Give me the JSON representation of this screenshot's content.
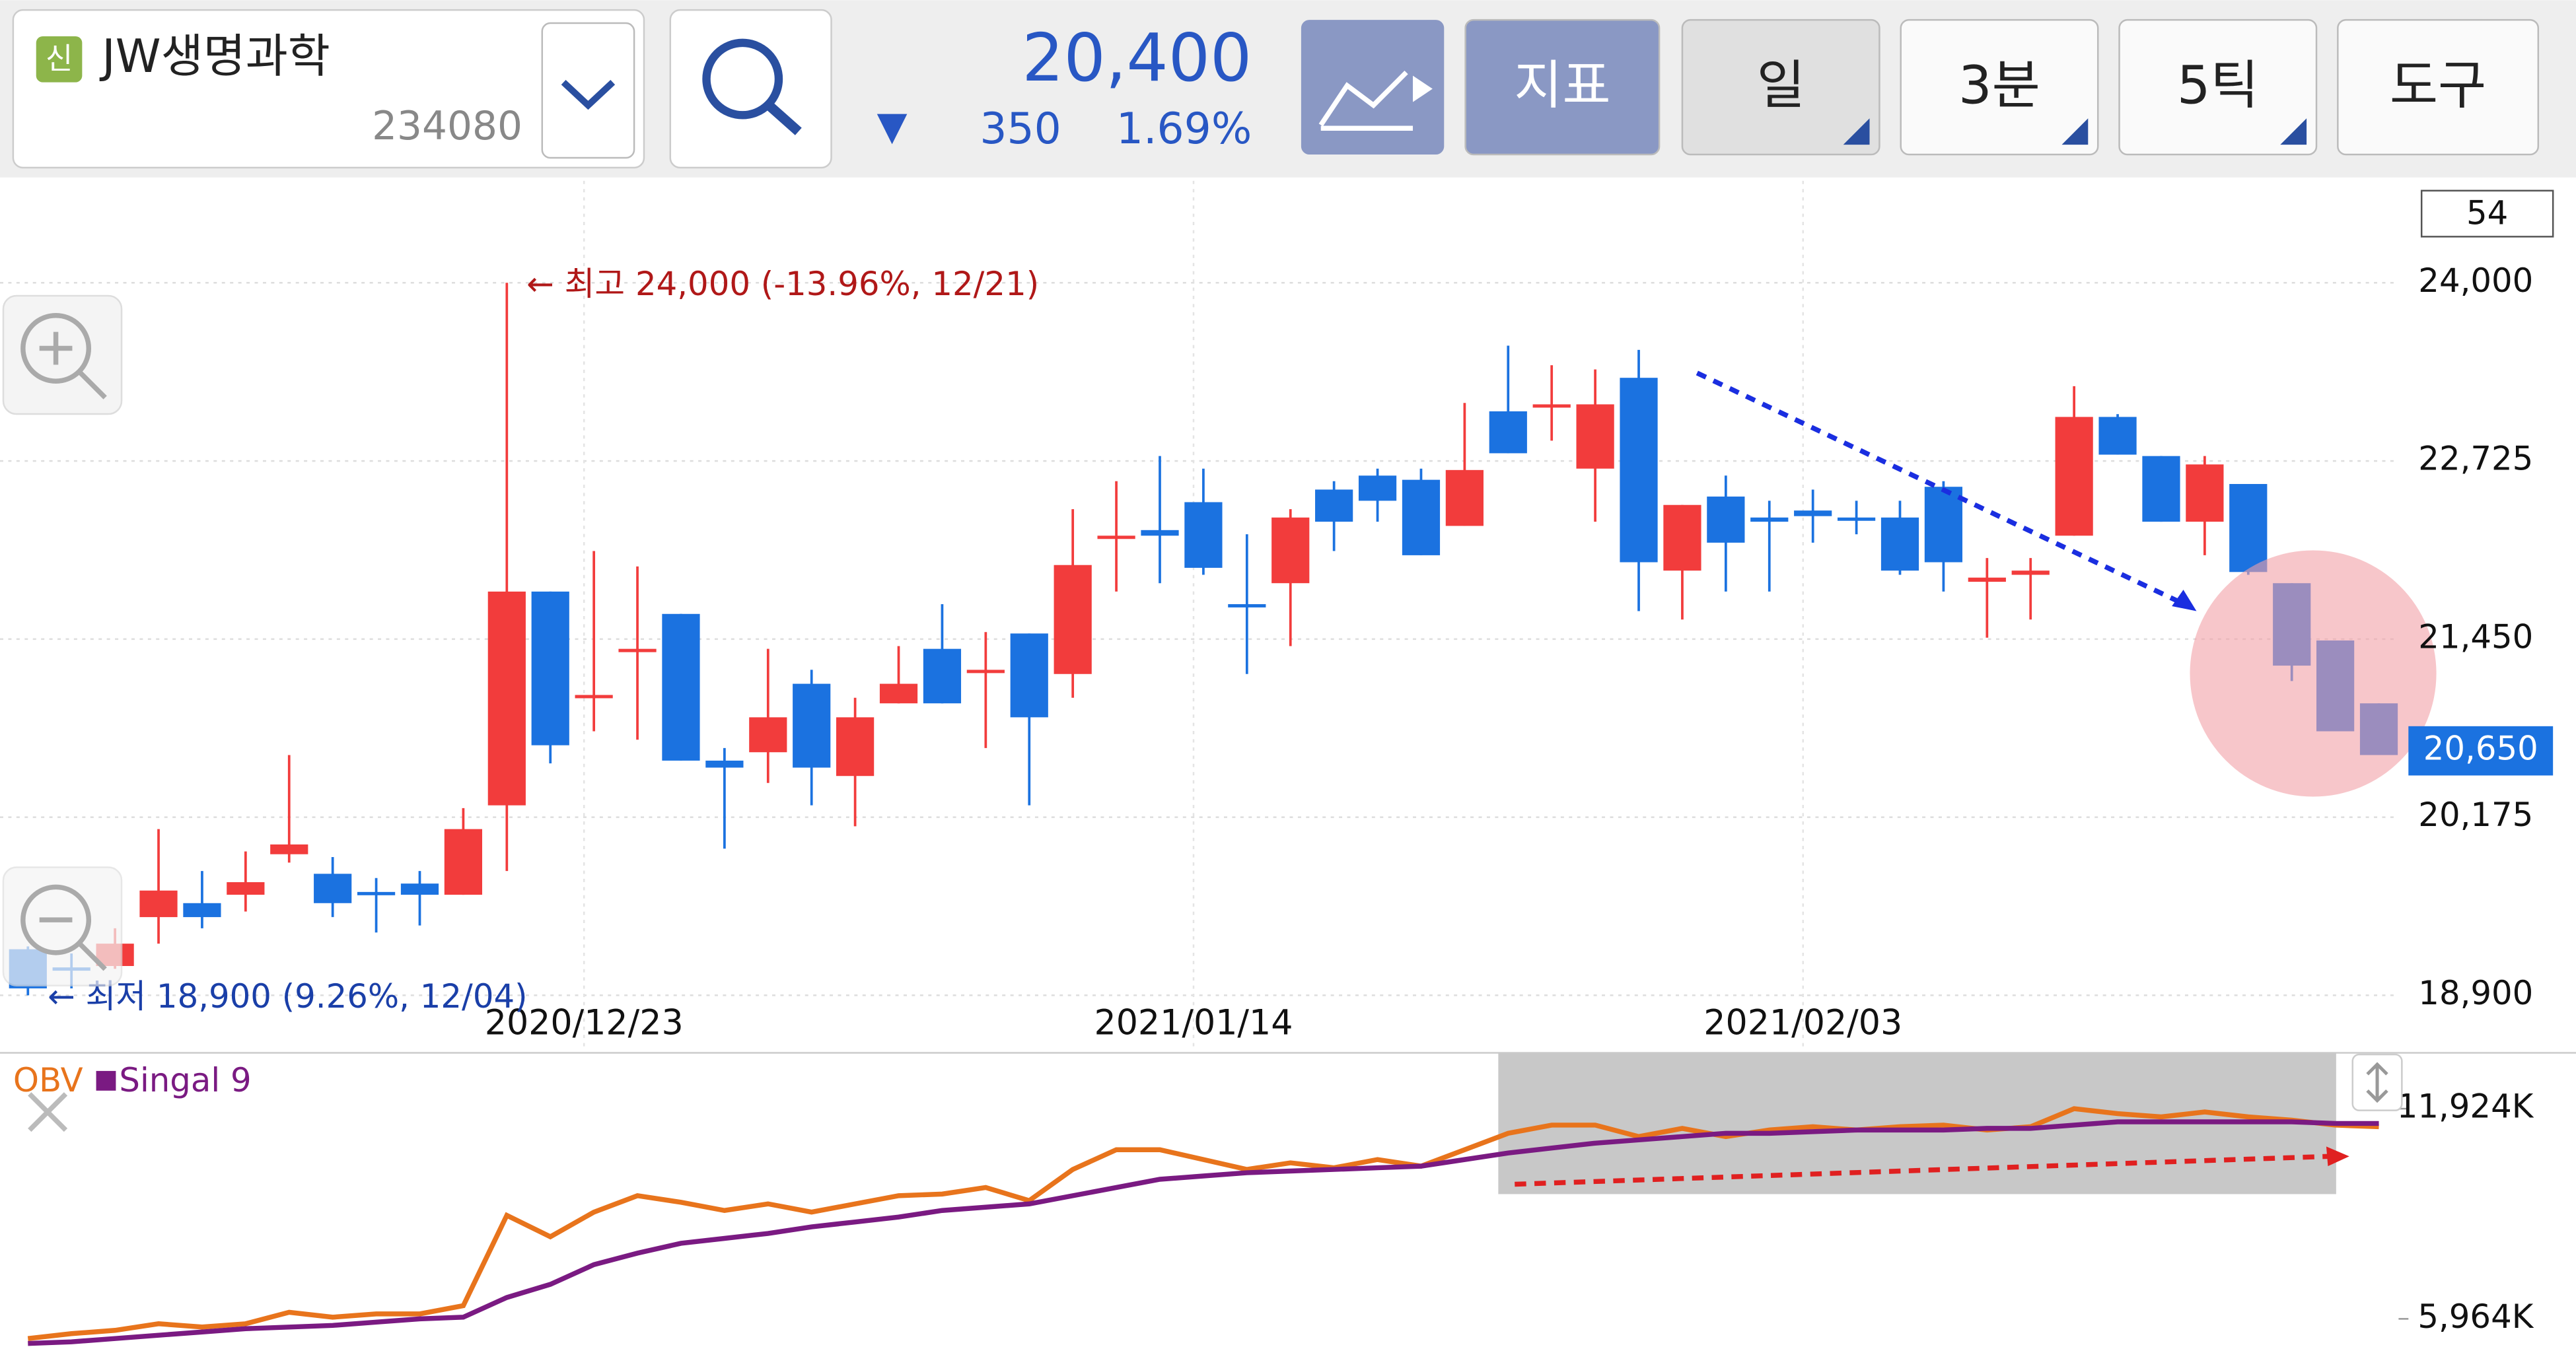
{
  "header": {
    "badge": "신",
    "stock_name": "JW생명과학",
    "stock_code": "234080",
    "price": "20,400",
    "change_arrow": "▼",
    "change": "350",
    "change_pct": "1.69%",
    "buttons": [
      "지표",
      "일",
      "3분",
      "5틱",
      "도구"
    ]
  },
  "chart_data": {
    "type": "candlestick",
    "up_color": "#f23c3c",
    "down_color": "#1b72e0",
    "categories": [
      null,
      null,
      null,
      null,
      null,
      null,
      null,
      null,
      null,
      null,
      null,
      null,
      null,
      "2020/12/23",
      null,
      null,
      null,
      null,
      null,
      null,
      null,
      null,
      null,
      null,
      null,
      null,
      null,
      "2021/01/14",
      null,
      null,
      null,
      null,
      null,
      null,
      null,
      null,
      null,
      null,
      null,
      null,
      null,
      "2021/02/03",
      null,
      null,
      null,
      null,
      null,
      null,
      null,
      null,
      null,
      null,
      null,
      null,
      null
    ],
    "open": [
      19230,
      19100,
      19110,
      19460,
      19560,
      19620,
      19910,
      19770,
      19640,
      19700,
      19620,
      20260,
      21790,
      21030,
      21360,
      21630,
      20580,
      20640,
      21130,
      20470,
      20990,
      21380,
      21210,
      21490,
      21200,
      22170,
      22230,
      22430,
      21700,
      21850,
      22520,
      22620,
      22590,
      22260,
      23080,
      23110,
      22670,
      23320,
      21940,
      22470,
      22320,
      22370,
      22320,
      22320,
      22540,
      21860,
      21910,
      22190,
      23040,
      22760,
      22290,
      22560,
      21850,
      21440,
      20990
    ],
    "high": [
      19250,
      19200,
      19380,
      20090,
      19790,
      19930,
      20620,
      19890,
      19740,
      19790,
      20240,
      24000,
      21790,
      22080,
      21970,
      21630,
      20670,
      21380,
      21230,
      21030,
      21400,
      21700,
      21500,
      21490,
      22380,
      22580,
      22760,
      22670,
      22200,
      22380,
      22580,
      22670,
      22670,
      23140,
      23550,
      23410,
      23380,
      23520,
      22410,
      22620,
      22440,
      22520,
      22440,
      22440,
      22580,
      22030,
      22030,
      23260,
      23060,
      22760,
      22760,
      22560,
      21850,
      21440,
      20990
    ],
    "low": [
      18900,
      18950,
      19090,
      19270,
      19380,
      19500,
      19850,
      19460,
      19350,
      19400,
      19620,
      19790,
      20560,
      20790,
      20730,
      20580,
      19950,
      20420,
      20260,
      20110,
      20990,
      20990,
      20670,
      20260,
      21030,
      21790,
      21850,
      21910,
      21200,
      21400,
      22080,
      22290,
      22050,
      22260,
      22780,
      22870,
      22290,
      21650,
      21590,
      21790,
      21790,
      22140,
      22200,
      21910,
      21790,
      21460,
      21590,
      22190,
      22770,
      22290,
      22050,
      21910,
      21150,
      20790,
      20620
    ],
    "close": [
      18950,
      19090,
      19270,
      19650,
      19460,
      19710,
      19980,
      19560,
      19640,
      19620,
      20090,
      21790,
      20690,
      21050,
      21380,
      20580,
      20530,
      20890,
      20530,
      20890,
      21130,
      20990,
      21230,
      20890,
      21980,
      22190,
      22190,
      21960,
      21680,
      22320,
      22290,
      22440,
      22050,
      22660,
      22780,
      23130,
      23130,
      22000,
      22410,
      22140,
      22290,
      22330,
      22320,
      21940,
      22000,
      21890,
      21940,
      23040,
      22770,
      22290,
      22700,
      21930,
      21260,
      20790,
      20620
    ],
    "ylim": [
      18500,
      24730
    ],
    "yticks": [
      {
        "value": 24000,
        "label": "24,000"
      },
      {
        "value": 22725,
        "label": "22,725"
      },
      {
        "value": 21450,
        "label": "21,450"
      },
      {
        "value": 20175,
        "label": "20,175"
      },
      {
        "value": 18900,
        "label": "18,900"
      }
    ],
    "current_price": {
      "value": 20650,
      "label": "20,650"
    },
    "visible_count": 54,
    "annotations": [
      "← 최고 24,000 (-13.96%, 12/21)",
      "← 최저 18,900 (9.26%, 12/04)"
    ],
    "grid": true,
    "y2lim": [
      5170,
      13320
    ],
    "y2ticks": [
      {
        "value": 11924,
        "label": "11,924K"
      },
      {
        "value": 5964,
        "label": "5,964K"
      }
    ],
    "series": [
      {
        "name": "OBV",
        "color": "#e8741c",
        "axis": "y2",
        "values": [
          5406,
          5545,
          5638,
          5825,
          5732,
          5825,
          6151,
          6011,
          6104,
          6104,
          6337,
          8898,
          8292,
          8991,
          9456,
          9270,
          9037,
          9224,
          8991,
          9224,
          9456,
          9503,
          9689,
          9317,
          10201,
          10760,
          10760,
          10481,
          10201,
          10388,
          10248,
          10481,
          10294,
          10760,
          11226,
          11458,
          11458,
          11133,
          11365,
          11133,
          11319,
          11412,
          11319,
          11412,
          11458,
          11319,
          11412,
          11924,
          11784,
          11691,
          11831,
          11691,
          11598,
          11458,
          11412
        ]
      },
      {
        "name": "Singal 9",
        "color": "#7a1a82",
        "axis": "y2",
        "values": [
          5266,
          5312,
          5406,
          5499,
          5592,
          5685,
          5731,
          5778,
          5871,
          5964,
          6011,
          6570,
          6942,
          7501,
          7827,
          8106,
          8246,
          8385,
          8572,
          8711,
          8851,
          9037,
          9130,
          9224,
          9456,
          9689,
          9922,
          10015,
          10108,
          10155,
          10201,
          10248,
          10294,
          10481,
          10667,
          10807,
          10946,
          11039,
          11133,
          11226,
          11226,
          11272,
          11319,
          11319,
          11319,
          11365,
          11365,
          11458,
          11551,
          11551,
          11551,
          11551,
          11551,
          11505,
          11505
        ]
      }
    ]
  }
}
